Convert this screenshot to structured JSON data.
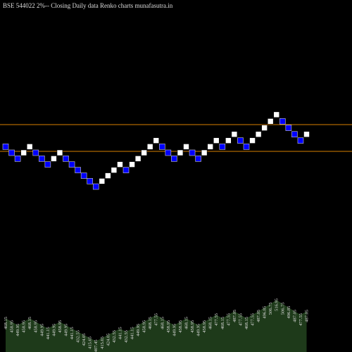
{
  "chart_data": {
    "type": "renko",
    "title": "BSE 544022  2%--  Closing Daily data  Renko  charts munafasutra.in",
    "values": [
      468.15,
      458.95,
      449.95,
      458.95,
      468.15,
      458.95,
      449.95,
      441.15,
      449.95,
      458.95,
      449.95,
      441.15,
      432.55,
      424.05,
      415.65,
      407.45,
      415.65,
      424.05,
      432.55,
      441.15,
      432.55,
      441.15,
      449.95,
      458.95,
      468.15,
      477.55,
      468.15,
      458.95,
      449.95,
      458.95,
      468.15,
      458.95,
      449.95,
      458.95,
      468.15,
      477.55,
      468.15,
      477.55,
      487.05,
      477.55,
      468.15,
      477.55,
      487.05,
      496.85,
      506.75,
      516.95,
      506.75,
      496.85,
      487.05,
      477.55,
      487.05
    ],
    "up_color": "#ffffff",
    "down_color": "#0000ff",
    "ylim": [
      220,
      670
    ],
    "hlines": [
      501.8,
      461.1
    ],
    "hline_color": "#d98000",
    "area_ylim": [
      380,
      530
    ],
    "area_color": "#1e3a1a"
  }
}
